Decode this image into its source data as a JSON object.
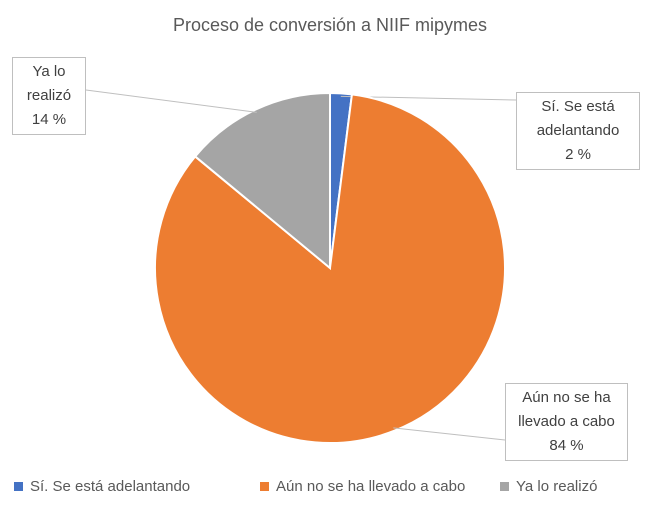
{
  "chart_data": {
    "type": "pie",
    "title": "Proceso de conversión a NIIF mipymes",
    "categories": [
      "Sí. Se está adelantando",
      "Aún no se ha llevado a cabo",
      "Ya lo realizó"
    ],
    "values": [
      2,
      84,
      14
    ],
    "value_labels": [
      "2 %",
      "84 %",
      "14 %"
    ],
    "colors": [
      "#4472c4",
      "#ed7d31",
      "#a5a5a5"
    ],
    "legend": "bottom"
  }
}
